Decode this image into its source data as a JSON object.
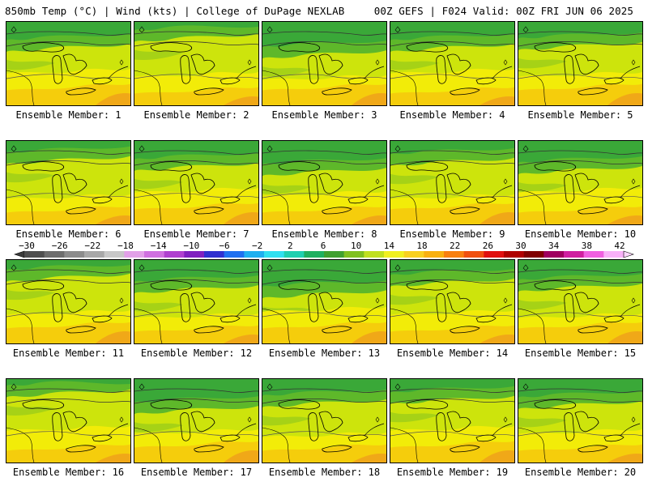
{
  "header": {
    "left": "850mb Temp (°C) | Wind (kts) | College of DuPage NEXLAB",
    "right": "00Z GEFS | F024 Valid: 00Z FRI JUN 06 2025"
  },
  "members": [
    {
      "label": "Ensemble Member: 1"
    },
    {
      "label": "Ensemble Member: 2"
    },
    {
      "label": "Ensemble Member: 3"
    },
    {
      "label": "Ensemble Member: 4"
    },
    {
      "label": "Ensemble Member: 5"
    },
    {
      "label": "Ensemble Member: 6"
    },
    {
      "label": "Ensemble Member: 7"
    },
    {
      "label": "Ensemble Member: 8"
    },
    {
      "label": "Ensemble Member: 9"
    },
    {
      "label": "Ensemble Member: 10"
    },
    {
      "label": "Ensemble Member: 11"
    },
    {
      "label": "Ensemble Member: 12"
    },
    {
      "label": "Ensemble Member: 13"
    },
    {
      "label": "Ensemble Member: 14"
    },
    {
      "label": "Ensemble Member: 15"
    },
    {
      "label": "Ensemble Member: 16"
    },
    {
      "label": "Ensemble Member: 17"
    },
    {
      "label": "Ensemble Member: 18"
    },
    {
      "label": "Ensemble Member: 19"
    },
    {
      "label": "Ensemble Member: 20"
    }
  ],
  "colorbar": {
    "ticks": [
      "−30",
      "−26",
      "−22",
      "−18",
      "−14",
      "−10",
      "−6",
      "−2",
      "2",
      "6",
      "10",
      "14",
      "18",
      "22",
      "26",
      "30",
      "34",
      "38",
      "42"
    ],
    "colors": [
      "#4f4f4f",
      "#6e6e6e",
      "#8c8c8c",
      "#a8a8a8",
      "#c8c8c8",
      "#e2a0e8",
      "#d070e0",
      "#b040d0",
      "#8020c0",
      "#3030d0",
      "#2070f0",
      "#20b0f0",
      "#30e0f0",
      "#20d0b0",
      "#20b060",
      "#40a030",
      "#80c020",
      "#c0e020",
      "#f0f020",
      "#f8d020",
      "#f8b010",
      "#f88010",
      "#f05010",
      "#e01010",
      "#b00000",
      "#800000",
      "#a00060",
      "#d020a0",
      "#f060e0",
      "#f8b0f8"
    ],
    "palette": {
      "dark_green": "#3aa838",
      "green": "#5eb82a",
      "yellow_green": "#a6d216",
      "lime": "#cde40c",
      "yellow": "#f2ec08",
      "gold": "#f5cd0c",
      "orange": "#f0a818"
    }
  }
}
